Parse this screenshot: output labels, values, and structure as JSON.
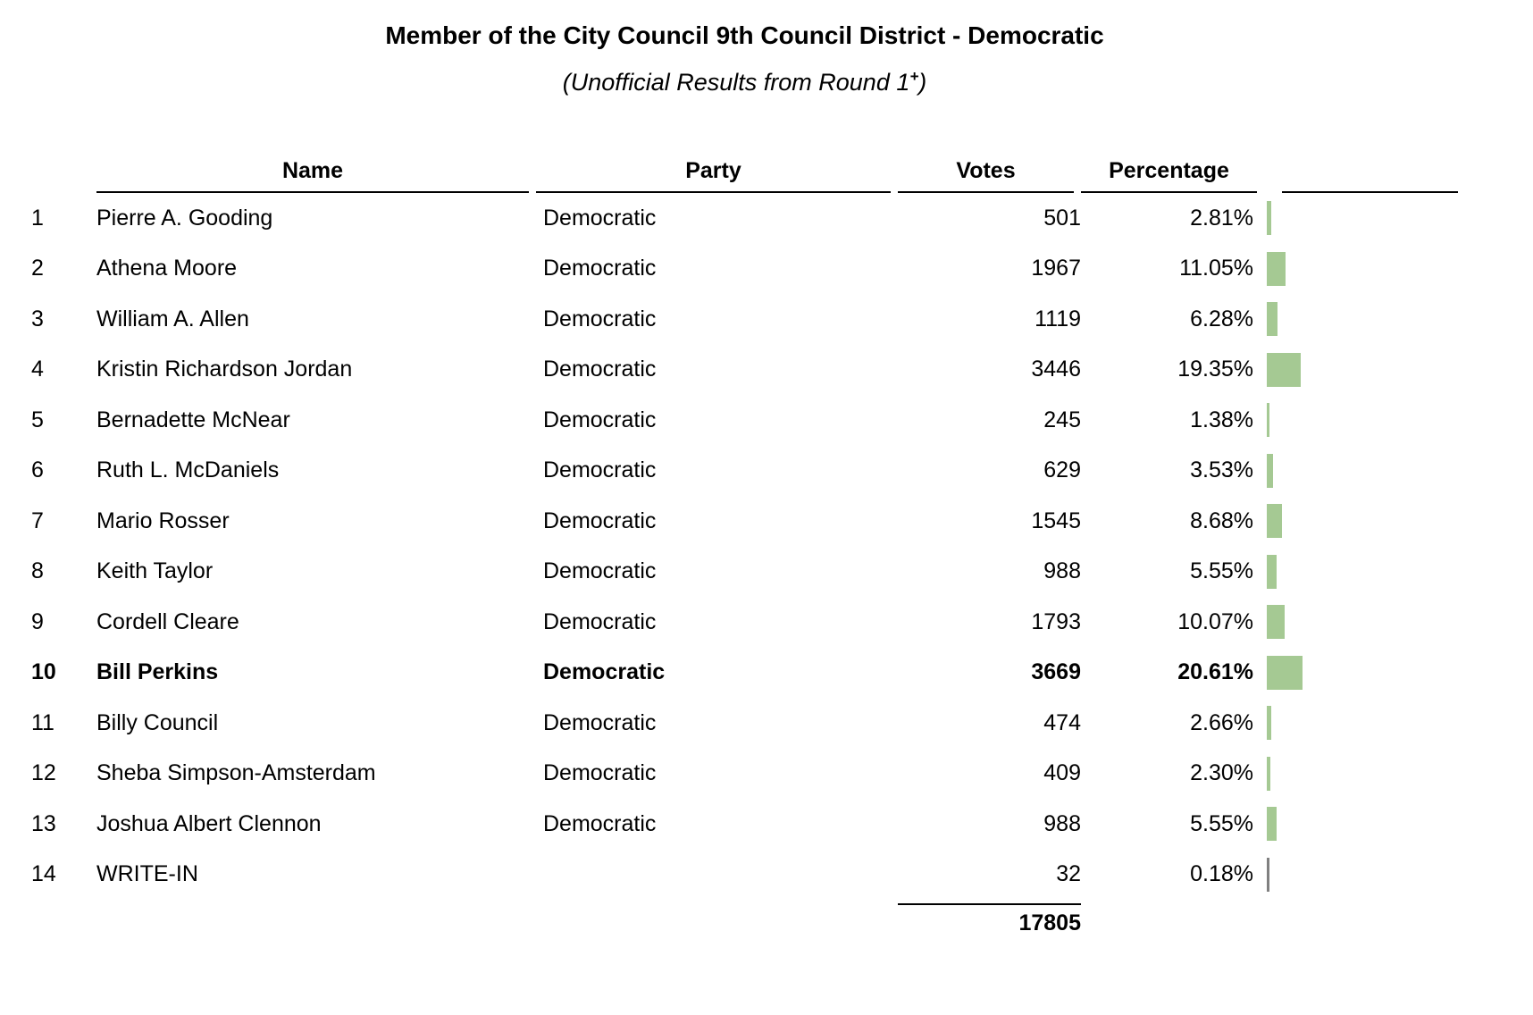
{
  "header": {
    "title": "Member of the City Council 9th Council District - Democratic",
    "subtitle_prefix": "(Unofficial Results from Round 1",
    "subtitle_superscript": "+",
    "subtitle_suffix": ")"
  },
  "table": {
    "columns": {
      "name": "Name",
      "party": "Party",
      "votes": "Votes",
      "percentage": "Percentage"
    },
    "rows": [
      {
        "rank": "1",
        "name": "Pierre A. Gooding",
        "party": "Democratic",
        "votes": "501",
        "percentage": "2.81%",
        "pct_value": 2.81,
        "bold": false,
        "bar_color": "green"
      },
      {
        "rank": "2",
        "name": "Athena Moore",
        "party": "Democratic",
        "votes": "1967",
        "percentage": "11.05%",
        "pct_value": 11.05,
        "bold": false,
        "bar_color": "green"
      },
      {
        "rank": "3",
        "name": "William A. Allen",
        "party": "Democratic",
        "votes": "1119",
        "percentage": "6.28%",
        "pct_value": 6.28,
        "bold": false,
        "bar_color": "green"
      },
      {
        "rank": "4",
        "name": "Kristin Richardson Jordan",
        "party": "Democratic",
        "votes": "3446",
        "percentage": "19.35%",
        "pct_value": 19.35,
        "bold": false,
        "bar_color": "green"
      },
      {
        "rank": "5",
        "name": "Bernadette McNear",
        "party": "Democratic",
        "votes": "245",
        "percentage": "1.38%",
        "pct_value": 1.38,
        "bold": false,
        "bar_color": "green"
      },
      {
        "rank": "6",
        "name": "Ruth L. McDaniels",
        "party": "Democratic",
        "votes": "629",
        "percentage": "3.53%",
        "pct_value": 3.53,
        "bold": false,
        "bar_color": "green"
      },
      {
        "rank": "7",
        "name": "Mario Rosser",
        "party": "Democratic",
        "votes": "1545",
        "percentage": "8.68%",
        "pct_value": 8.68,
        "bold": false,
        "bar_color": "green"
      },
      {
        "rank": "8",
        "name": "Keith Taylor",
        "party": "Democratic",
        "votes": "988",
        "percentage": "5.55%",
        "pct_value": 5.55,
        "bold": false,
        "bar_color": "green"
      },
      {
        "rank": "9",
        "name": "Cordell Cleare",
        "party": "Democratic",
        "votes": "1793",
        "percentage": "10.07%",
        "pct_value": 10.07,
        "bold": false,
        "bar_color": "green"
      },
      {
        "rank": "10",
        "name": "Bill Perkins",
        "party": "Democratic",
        "votes": "3669",
        "percentage": "20.61%",
        "pct_value": 20.61,
        "bold": true,
        "bar_color": "green"
      },
      {
        "rank": "11",
        "name": "Billy Council",
        "party": "Democratic",
        "votes": "474",
        "percentage": "2.66%",
        "pct_value": 2.66,
        "bold": false,
        "bar_color": "green"
      },
      {
        "rank": "12",
        "name": "Sheba Simpson-Amsterdam",
        "party": "Democratic",
        "votes": "409",
        "percentage": "2.30%",
        "pct_value": 2.3,
        "bold": false,
        "bar_color": "green"
      },
      {
        "rank": "13",
        "name": "Joshua Albert Clennon",
        "party": "Democratic",
        "votes": "988",
        "percentage": "5.55%",
        "pct_value": 5.55,
        "bold": false,
        "bar_color": "green"
      },
      {
        "rank": "14",
        "name": "WRITE-IN",
        "party": "",
        "votes": "32",
        "percentage": "0.18%",
        "pct_value": 0.18,
        "bold": false,
        "bar_color": "gray"
      }
    ],
    "total_votes": "17805"
  },
  "colors": {
    "bar_green": "#a5c993",
    "bar_gray": "#808080",
    "text": "#000000",
    "background": "#ffffff"
  },
  "chart_data": {
    "type": "table",
    "title": "Member of the City Council 9th Council District - Democratic",
    "subtitle": "(Unofficial Results from Round 1+)",
    "columns": [
      "Name",
      "Party",
      "Votes",
      "Percentage"
    ],
    "categories": [
      "Pierre A. Gooding",
      "Athena Moore",
      "William A. Allen",
      "Kristin Richardson Jordan",
      "Bernadette McNear",
      "Ruth L. McDaniels",
      "Mario Rosser",
      "Keith Taylor",
      "Cordell Cleare",
      "Bill Perkins",
      "Billy Council",
      "Sheba Simpson-Amsterdam",
      "Joshua Albert Clennon",
      "WRITE-IN"
    ],
    "series": [
      {
        "name": "Votes",
        "values": [
          501,
          1967,
          1119,
          3446,
          245,
          629,
          1545,
          988,
          1793,
          3669,
          474,
          409,
          988,
          32
        ]
      },
      {
        "name": "Percentage",
        "values": [
          2.81,
          11.05,
          6.28,
          19.35,
          1.38,
          3.53,
          8.68,
          5.55,
          10.07,
          20.61,
          2.66,
          2.3,
          5.55,
          0.18
        ]
      }
    ],
    "total_votes": 17805,
    "bar_color": "#a5c993",
    "writein_bar_color": "#808080",
    "highlighted_category": "Bill Perkins",
    "legend": "off",
    "grid": "off"
  }
}
